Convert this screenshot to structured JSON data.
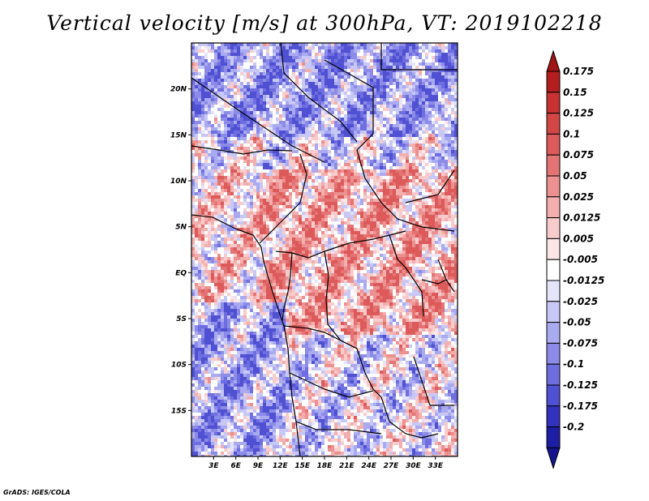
{
  "title": "Vertical velocity [m/s] at 300hPa, VT: 2019102218",
  "credit": "GrADS: IGES/COLA",
  "map": {
    "lon_range": [
      0,
      36
    ],
    "lat_range": [
      -20,
      25
    ],
    "x_ticks": [
      {
        "value": 3,
        "label": "3E"
      },
      {
        "value": 6,
        "label": "6E"
      },
      {
        "value": 9,
        "label": "9E"
      },
      {
        "value": 12,
        "label": "12E"
      },
      {
        "value": 15,
        "label": "15E"
      },
      {
        "value": 18,
        "label": "18E"
      },
      {
        "value": 21,
        "label": "21E"
      },
      {
        "value": 24,
        "label": "24E"
      },
      {
        "value": 27,
        "label": "27E"
      },
      {
        "value": 30,
        "label": "30E"
      },
      {
        "value": 33,
        "label": "33E"
      }
    ],
    "y_ticks": [
      {
        "value": 20,
        "label": "20N"
      },
      {
        "value": 15,
        "label": "15N"
      },
      {
        "value": 10,
        "label": "10N"
      },
      {
        "value": 5,
        "label": "5N"
      },
      {
        "value": 0,
        "label": "EQ"
      },
      {
        "value": -5,
        "label": "5S"
      },
      {
        "value": -10,
        "label": "10S"
      },
      {
        "value": -15,
        "label": "15S"
      }
    ]
  },
  "colorbar": {
    "levels": [
      {
        "label": "0.175",
        "color": "#b41e1e"
      },
      {
        "label": "0.15",
        "color": "#c83232"
      },
      {
        "label": "0.125",
        "color": "#d24646"
      },
      {
        "label": "0.1",
        "color": "#dc5a5a"
      },
      {
        "label": "0.075",
        "color": "#e47373"
      },
      {
        "label": "0.05",
        "color": "#ec9090"
      },
      {
        "label": "0.025",
        "color": "#f3aeae"
      },
      {
        "label": "0.0125",
        "color": "#f8cccc"
      },
      {
        "label": "0.005",
        "color": "#fce6e6"
      },
      {
        "label": "-0.005",
        "color": "#ffffff"
      },
      {
        "label": "-0.0125",
        "color": "#e4e4fb"
      },
      {
        "label": "-0.025",
        "color": "#c8c8f6"
      },
      {
        "label": "-0.05",
        "color": "#aaaaf0"
      },
      {
        "label": "-0.075",
        "color": "#8c8ce8"
      },
      {
        "label": "-0.1",
        "color": "#6e6ee0"
      },
      {
        "label": "-0.125",
        "color": "#5050d2"
      },
      {
        "label": "-0.175",
        "color": "#3232be"
      },
      {
        "label": "-0.2",
        "color": "#1e1ea5"
      }
    ],
    "top_extend_color": "#a01414",
    "bottom_extend_color": "#14148c"
  }
}
